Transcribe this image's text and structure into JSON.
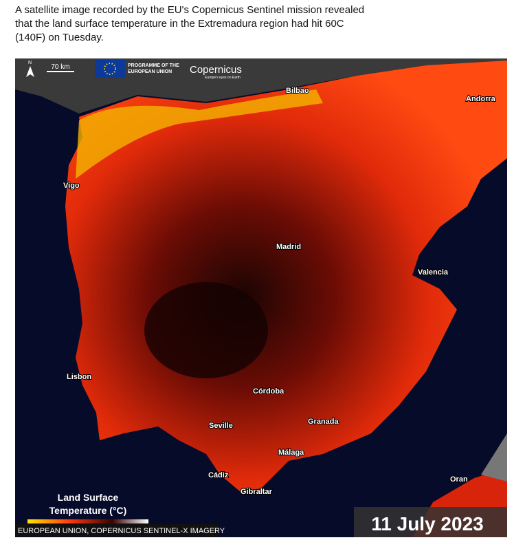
{
  "caption": [
    "A satellite image recorded by the EU's Copernicus Sentinel mission revealed",
    "that the land surface temperature in the Extremadura region had hit 60C",
    "(140F) on Tuesday."
  ],
  "map": {
    "north": "N",
    "scale_label": "70 km",
    "programme": [
      "PROGRAMME OF THE",
      "EUROPEAN UNION"
    ],
    "brand": "Copernicus",
    "brand_tagline": "Europe's eyes on Earth",
    "places": [
      "Bilbao",
      "Andorra",
      "Vigo",
      "Madrid",
      "Valencia",
      "Lisbon",
      "Córdoba",
      "Seville",
      "Granada",
      "Málaga",
      "Cádiz",
      "Gibraltar",
      "Oran"
    ],
    "legend_title": [
      "Land Surface",
      "Temperature (°C)"
    ],
    "credit": "EUROPEAN UNION, COPERNICUS SENTINEL-X IMAGERY",
    "date": "11 July 2023"
  }
}
